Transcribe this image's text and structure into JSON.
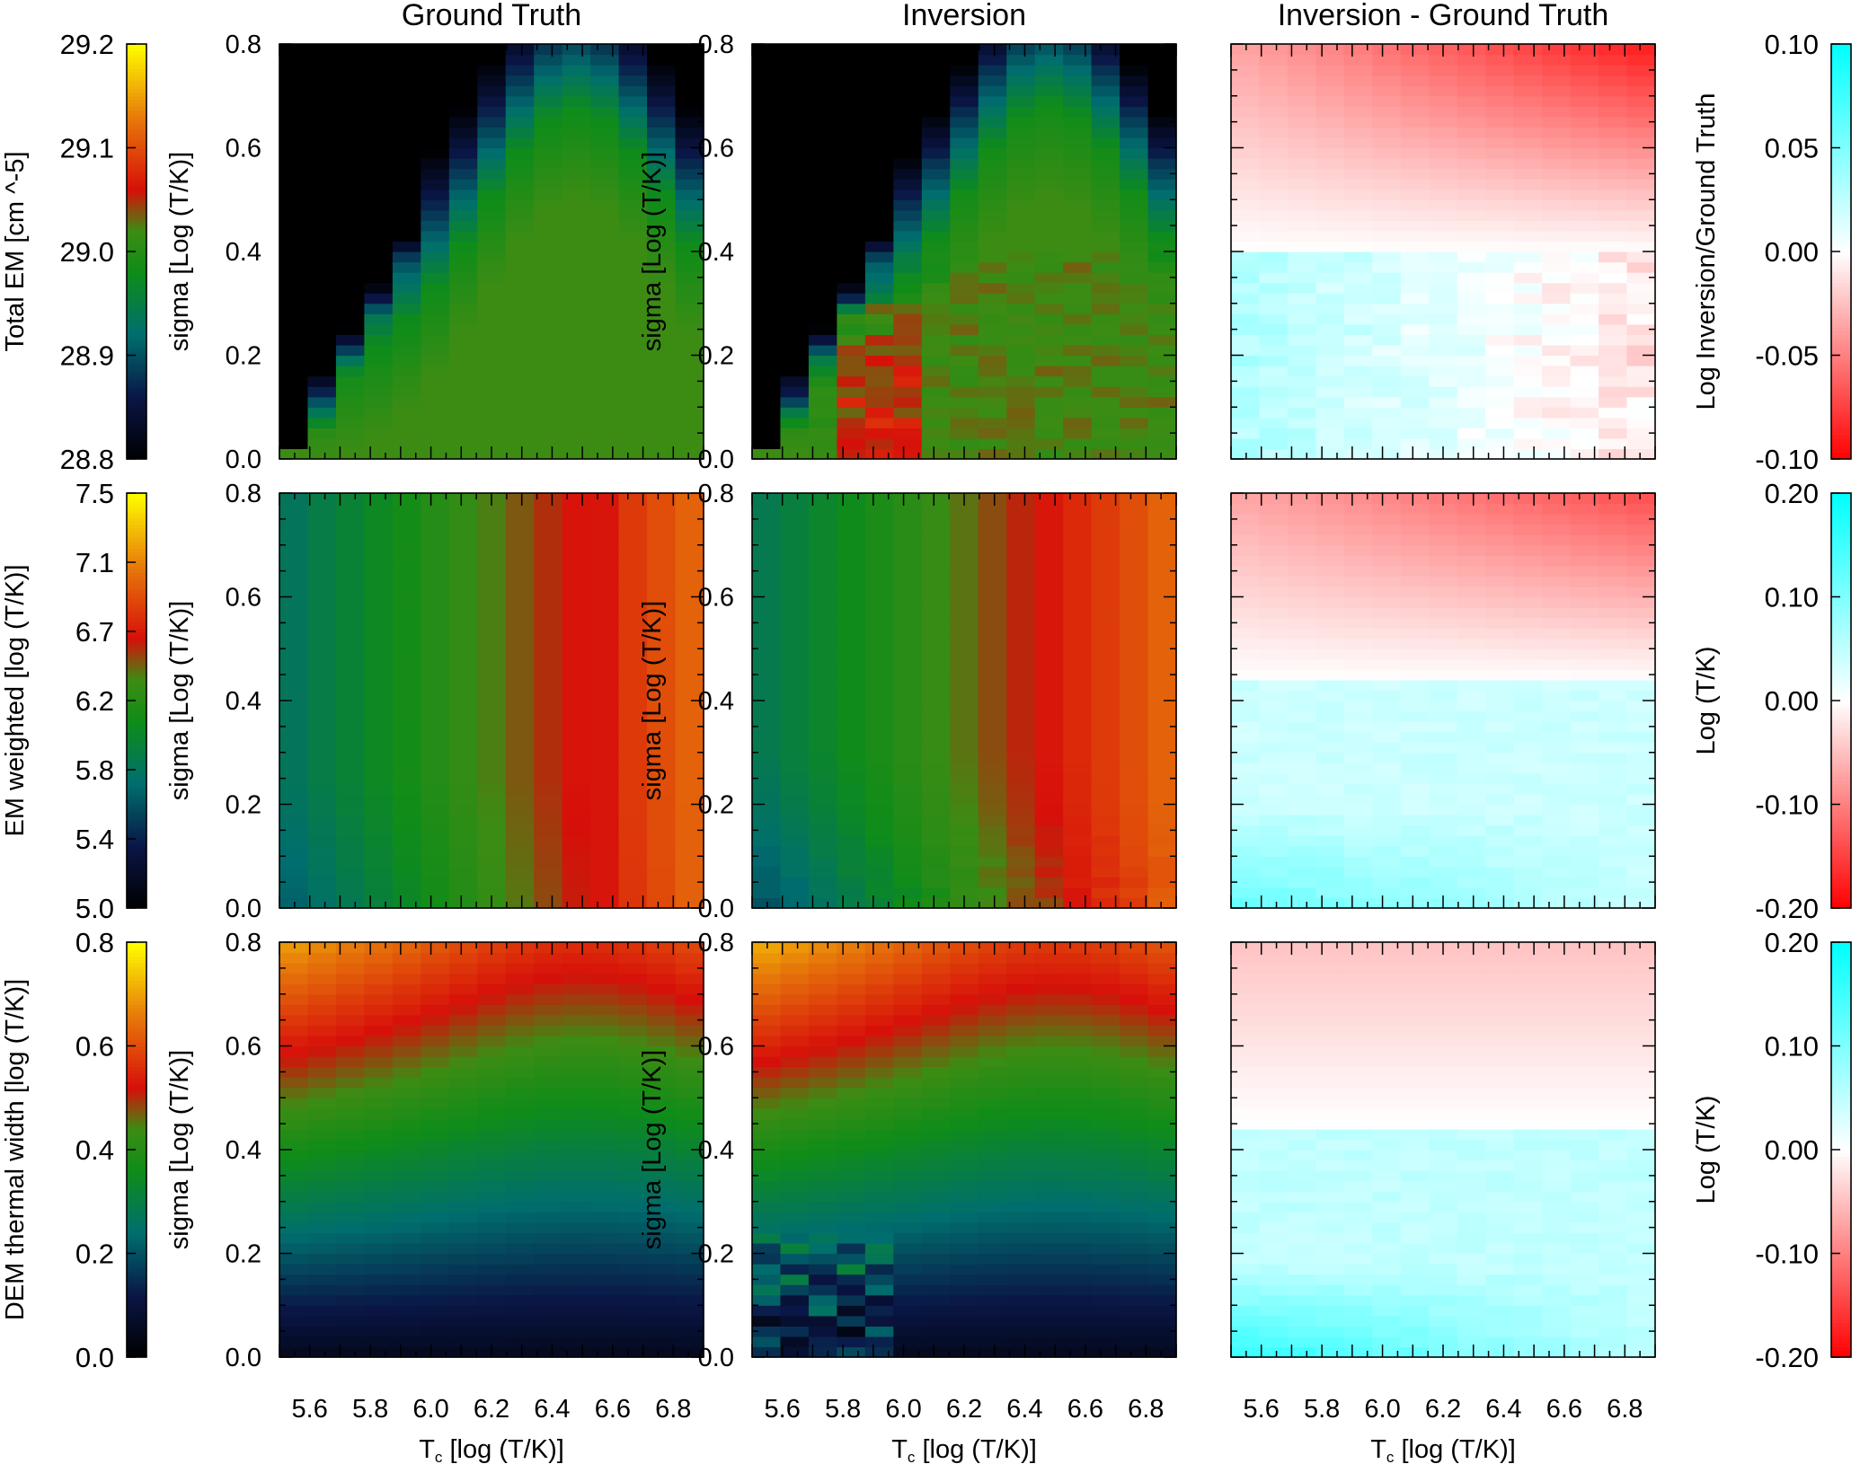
{
  "columns": {
    "ground_truth": "Ground Truth",
    "inversion": "Inversion",
    "difference": "Inversion - Ground Truth"
  },
  "axes": {
    "xlabel": "T",
    "xlabel_sub": "c",
    "xlabel_unit": " [log (T/K)]",
    "ylabel": "sigma [Log (T/K)]",
    "x_ticks": [
      "5.6",
      "5.8",
      "6.0",
      "6.2",
      "6.4",
      "6.6",
      "6.8"
    ],
    "y_ticks": [
      "0.0",
      "0.2",
      "0.4",
      "0.6",
      "0.8"
    ]
  },
  "colors": {
    "difference_positive": "#00ffff",
    "difference_negative": "#ff0000",
    "difference_zero": "#ffffff"
  },
  "chart_data": [
    {
      "type": "heatmap",
      "row": "Total EM",
      "xlim": [
        5.5,
        6.9
      ],
      "ylim": [
        0.0,
        0.8
      ],
      "x_ticks": [
        5.6,
        5.8,
        6.0,
        6.2,
        6.4,
        6.6,
        6.8
      ],
      "y_ticks": [
        0.0,
        0.2,
        0.4,
        0.6,
        0.8
      ],
      "left_colorbar": {
        "label": "Total EM [cm ^-5]",
        "range": [
          28.8,
          29.2
        ],
        "ticks": [
          "28.8",
          "28.9",
          "29.0",
          "29.1",
          "29.2"
        ]
      },
      "right_colorbar": {
        "label": "Log Inversion/Ground Truth",
        "range": [
          -0.1,
          0.1
        ],
        "ticks": [
          "-0.10",
          "-0.05",
          "0.00",
          "0.05",
          "0.10"
        ]
      },
      "panels": [
        "Ground Truth",
        "Inversion",
        "Inversion - Ground Truth"
      ]
    },
    {
      "type": "heatmap",
      "row": "EM weighted",
      "xlim": [
        5.5,
        6.9
      ],
      "ylim": [
        0.0,
        0.8
      ],
      "x_ticks": [
        5.6,
        5.8,
        6.0,
        6.2,
        6.4,
        6.6,
        6.8
      ],
      "y_ticks": [
        0.0,
        0.2,
        0.4,
        0.6,
        0.8
      ],
      "left_colorbar": {
        "label": "EM weighted [log (T/K)]",
        "range": [
          5.0,
          7.5
        ],
        "ticks": [
          "5.0",
          "5.4",
          "5.8",
          "6.2",
          "6.7",
          "7.1",
          "7.5"
        ]
      },
      "right_colorbar": {
        "label": "Log (T/K)",
        "range": [
          -0.2,
          0.2
        ],
        "ticks": [
          "-0.20",
          "-0.10",
          "0.00",
          "0.10",
          "0.20"
        ]
      },
      "panels": [
        "Ground Truth",
        "Inversion",
        "Inversion - Ground Truth"
      ]
    },
    {
      "type": "heatmap",
      "row": "DEM thermal width",
      "xlim": [
        5.5,
        6.9
      ],
      "ylim": [
        0.0,
        0.8
      ],
      "x_ticks": [
        5.6,
        5.8,
        6.0,
        6.2,
        6.4,
        6.6,
        6.8
      ],
      "y_ticks": [
        0.0,
        0.2,
        0.4,
        0.6,
        0.8
      ],
      "left_colorbar": {
        "label": "DEM thermal width [log (T/K)]",
        "range": [
          0.0,
          0.8
        ],
        "ticks": [
          "0.0",
          "0.2",
          "0.4",
          "0.6",
          "0.8"
        ]
      },
      "right_colorbar": {
        "label": "Log (T/K)",
        "range": [
          -0.2,
          0.2
        ],
        "ticks": [
          "-0.20",
          "-0.10",
          "0.00",
          "0.10",
          "0.20"
        ]
      },
      "panels": [
        "Ground Truth",
        "Inversion",
        "Inversion - Ground Truth"
      ]
    }
  ]
}
